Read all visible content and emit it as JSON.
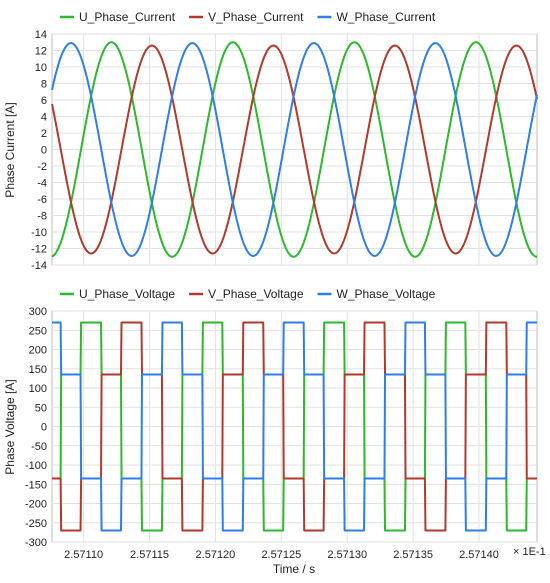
{
  "chart_data": [
    {
      "type": "line",
      "ylabel": "Phase Current [A]",
      "xlabel": "",
      "xlim": [
        2.571076,
        2.571444
      ],
      "ylim": [
        -14,
        14
      ],
      "yticks": [
        14,
        12,
        10,
        8,
        6,
        4,
        2,
        0,
        -2,
        -4,
        -6,
        -8,
        -10,
        -12,
        -14
      ],
      "legend_position": "top-left",
      "grid": true,
      "series": [
        {
          "name": "U_Phase_Current",
          "color": "#2db82d",
          "amplitude": 13,
          "phase_deg": 0,
          "period": 9.22e-05,
          "phase_ref_x": 2.571098
        },
        {
          "name": "V_Phase_Current",
          "color": "#b03a2e",
          "amplitude": 12.6,
          "phase_deg": -120,
          "period": 9.22e-05,
          "phase_ref_x": 2.571098
        },
        {
          "name": "W_Phase_Current",
          "color": "#2f7ee8",
          "amplitude": 12.9,
          "phase_deg": 120,
          "period": 9.22e-05,
          "phase_ref_x": 2.571098
        }
      ]
    },
    {
      "type": "line",
      "ylabel": "Phase Voltage [A]",
      "xlabel": "Time / s",
      "xlim": [
        2.571076,
        2.571444
      ],
      "ylim": [
        -300,
        300
      ],
      "yticks": [
        300,
        250,
        200,
        150,
        100,
        50,
        0,
        -50,
        -100,
        -150,
        -200,
        -250,
        -300
      ],
      "xticks": [
        2.5711,
        2.57115,
        2.5712,
        2.57125,
        2.5713,
        2.57135,
        2.5714
      ],
      "xtick_labels": [
        "2.57110",
        "2.57115",
        "2.57120",
        "2.57125",
        "2.57130",
        "2.57135",
        "2.57140"
      ],
      "x_multiplier_label": "× 1E-1",
      "legend_position": "top-left",
      "grid": true,
      "series": [
        {
          "name": "U_Phase_Voltage",
          "color": "#2db82d",
          "levels": [
            270,
            135,
            -135,
            -270,
            -135,
            135
          ],
          "phase_steps": 0,
          "period": 9.22e-05,
          "phase_ref_x": 2.571098
        },
        {
          "name": "V_Phase_Voltage",
          "color": "#b03a2e",
          "levels": [
            270,
            135,
            -135,
            -270,
            -135,
            135
          ],
          "phase_steps": 2,
          "period": 9.22e-05,
          "phase_ref_x": 2.571098
        },
        {
          "name": "W_Phase_Voltage",
          "color": "#2f7ee8",
          "levels": [
            270,
            135,
            -135,
            -270,
            -135,
            135
          ],
          "phase_steps": 4,
          "period": 9.22e-05,
          "phase_ref_x": 2.571098
        }
      ]
    }
  ]
}
